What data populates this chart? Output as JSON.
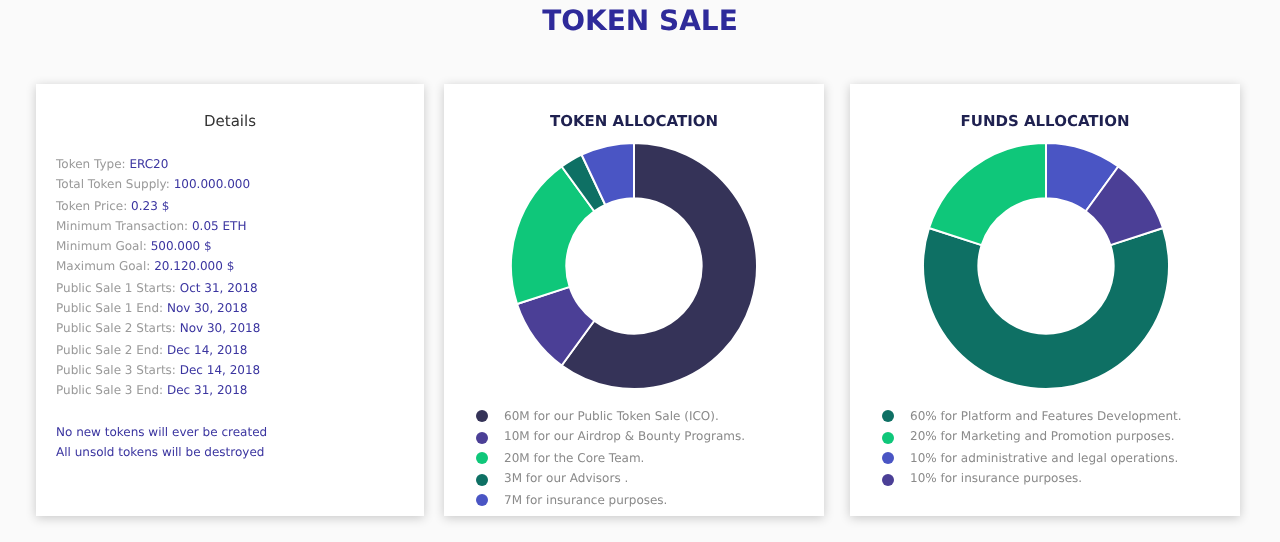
{
  "chart_data": [
    {
      "type": "other",
      "title": "TOKEN SALE"
    },
    {
      "type": "other",
      "title": "Details",
      "annotations": [
        "Token Type: ERC20",
        "Total Token Supply: 100.000.000",
        "Token Price: 0.23 $",
        "Minimum Transaction: 0.05 ETH",
        "Minimum Goal: 500.000 $",
        "Maximum Goal: 20.120.000 $",
        "Public Sale 1 Starts: Oct 31, 2018",
        "Public Sale 1 End: Nov 30, 2018",
        "Public Sale 2 Starts: Nov 30, 2018",
        "Public Sale 2 End: Dec 14, 2018",
        "Public Sale 3 Starts: Dec 14, 2018",
        "Public Sale 3 End: Dec 31, 2018",
        "No new tokens will ever be created",
        "All unsold tokens will be destroyed"
      ]
    },
    {
      "type": "donut",
      "title": "TOKEN ALLOCATION",
      "categories": [
        "60M for our Public Token Sale (ICO).",
        "10M for our Airdrop & Bounty Programs.",
        "20M for the Core Team.",
        "3M for our Advisors .",
        "7M for insurance purposes."
      ],
      "values": [
        60,
        10,
        20,
        3,
        7
      ],
      "colors": [
        "#353358",
        "#4b3f96",
        "#0fc77a",
        "#0e7064",
        "#4a55c4"
      ],
      "legend": "bottom"
    },
    {
      "type": "donut",
      "title": "FUNDS ALLOCATION",
      "categories": [
        "60% for Platform and Features Development.",
        "20% for Marketing and Promotion purposes.",
        "10% for administrative and legal operations.",
        "10% for insurance purposes."
      ],
      "values": [
        60,
        20,
        10,
        10
      ],
      "colors": [
        "#0e7064",
        "#0fc77a",
        "#4a55c4",
        "#4b3f96"
      ],
      "legend": "bottom"
    }
  ]
}
